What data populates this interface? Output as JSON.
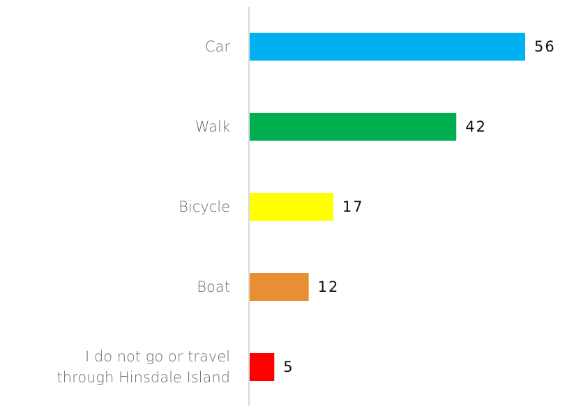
{
  "chart_data": {
    "type": "bar",
    "orientation": "horizontal",
    "categories": [
      "Car",
      "Walk",
      "Bicycle",
      "Boat",
      "I do not go or travel\nthrough Hinsdale Island"
    ],
    "values": [
      56,
      42,
      17,
      12,
      5
    ],
    "colors": [
      "#00b0f0",
      "#00b050",
      "#ffff00",
      "#e98f33",
      "#ff0000"
    ]
  }
}
